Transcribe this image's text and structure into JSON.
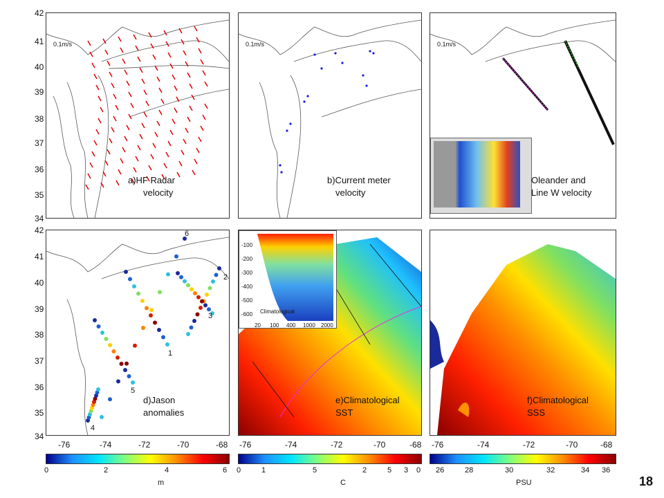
{
  "y_ticks_top": [
    "42",
    "41",
    "40",
    "39",
    "38",
    "37",
    "36",
    "35",
    "34"
  ],
  "y_ticks_bottom": [
    "42",
    "41",
    "40",
    "39",
    "38",
    "37",
    "36",
    "35",
    "34"
  ],
  "panels": {
    "a": {
      "line1": "a)HF Radar",
      "line2": "velocity",
      "scale": "0.1m/s"
    },
    "b": {
      "line1": "b)Current meter",
      "line2": "velocity",
      "scale": "0.1m/s"
    },
    "c": {
      "line1": "Oleander and",
      "line2": "Line W velocity",
      "scale": "0.1m/s"
    },
    "d": {
      "line1": "d)Jason",
      "line2": "anomalies"
    },
    "e": {
      "line1": "e)Climatological",
      "line2": "SST"
    },
    "f": {
      "line1": "f)Climatological",
      "line2": "SSS"
    }
  },
  "track_labels": [
    "6",
    "2",
    "3",
    "1",
    "5",
    "4"
  ],
  "inset_e": {
    "label": "Climatological",
    "y_ticks": [
      "-100",
      "-200",
      "-300",
      "-400",
      "-500",
      "-600"
    ],
    "x_ticks": [
      "20",
      "100",
      "400",
      "1000",
      "2000"
    ]
  },
  "x_ticks_1": [
    "-76",
    "-74",
    "-72",
    "-70",
    "-68"
  ],
  "x_ticks_2": [
    "-76",
    "-74",
    "-72",
    "-70",
    "-68"
  ],
  "x_ticks_3": [
    "-76",
    "-74",
    "-72",
    "-70",
    "-68"
  ],
  "colorbars": [
    {
      "ticks": [
        "0",
        "2",
        "4",
        "6"
      ],
      "unit": "m",
      "colors": [
        "#00008b",
        "#1e90ff",
        "#00e5ff",
        "#7fff7f",
        "#ffff00",
        "#ff8c00",
        "#ff0000",
        "#8b0000"
      ]
    },
    {
      "ticks": [
        "0",
        "1",
        "5",
        "2",
        "5",
        "3",
        "0"
      ],
      "unit": "C",
      "colors": [
        "#00008b",
        "#1e90ff",
        "#00e5ff",
        "#7fff7f",
        "#ffff00",
        "#ff8c00",
        "#ff0000",
        "#8b0000"
      ]
    },
    {
      "ticks": [
        "26",
        "28",
        "30",
        "32",
        "34",
        "36"
      ],
      "unit": "PSU",
      "colors": [
        "#00008b",
        "#1e90ff",
        "#00e5ff",
        "#7fff7f",
        "#ffff00",
        "#ff8c00",
        "#ff0000",
        "#8b0000"
      ]
    }
  ],
  "page_number": "18",
  "colors": {
    "radar": "#e00000",
    "meter": "#1a1adf",
    "magenta": "#e020e0",
    "green": "#20c020"
  }
}
